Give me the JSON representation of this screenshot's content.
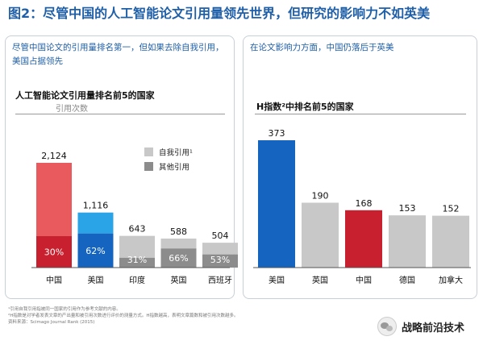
{
  "figure": {
    "label": "图2：",
    "title": "尽管中国的人工智能论文引用量领先世界，但研究的影响力不如英美"
  },
  "left_panel": {
    "subtitle": "尽管中国论文的引用量排名第一，但如果去除自我引用，美国占据领先",
    "chart_title": "人工智能论文引用量排名前5的国家",
    "unit": "引用次数"
  },
  "right_panel": {
    "subtitle": "在论文影响力方面，中国仍落后于英美",
    "chart_title": "H指数²中排名前5的国家"
  },
  "chart_data": [
    {
      "type": "bar",
      "title": "人工智能论文引用量排名前5的国家",
      "ylabel": "引用次数",
      "categories": [
        "中国",
        "美国",
        "印度",
        "英国",
        "西班牙"
      ],
      "totals": [
        2124,
        1116,
        643,
        588,
        504
      ],
      "total_labels": [
        "2,124",
        "1,116",
        "643",
        "588",
        "504"
      ],
      "series": [
        {
          "name": "其他引用",
          "values_pct": [
            30,
            62,
            31,
            66,
            53
          ]
        },
        {
          "name": "自我引用¹",
          "values_pct": [
            70,
            38,
            69,
            34,
            47
          ]
        }
      ],
      "pct_labels": [
        "30%",
        "62%",
        "31%",
        "66%",
        "53%"
      ],
      "legend": [
        "自我引用¹",
        "其他引用"
      ],
      "legend_position": "right",
      "top_colors": [
        "#e85a5e",
        "#2aa4e6",
        "#c8c8c8",
        "#c8c8c8",
        "#c8c8c8"
      ],
      "bottom_colors": [
        "#c8202e",
        "#1565c0",
        "#8c8c8c",
        "#8c8c8c",
        "#8c8c8c"
      ],
      "legend_colors": [
        "#c8c8c8",
        "#8c8c8c"
      ],
      "grid": false
    },
    {
      "type": "bar",
      "title": "H指数²中排名前5的国家",
      "categories": [
        "美国",
        "英国",
        "中国",
        "德国",
        "加拿大"
      ],
      "values": [
        373,
        190,
        168,
        153,
        152
      ],
      "value_labels": [
        "373",
        "190",
        "168",
        "153",
        "152"
      ],
      "colors": [
        "#1565c0",
        "#c8c8c8",
        "#c8202e",
        "#c8c8c8",
        "#c8c8c8"
      ],
      "grid": false
    }
  ],
  "footnotes": [
    "¹引用自我引用指被同一国家的引用作为参考文献的内容。",
    "²H指数是对学者发表文章的产出量和被引用次数进行评价的测量方式。H指数越高，表明文章篇数和被引用次数越多。",
    "资料来源：Scimago Journal Rank (2015)"
  ],
  "watermark": "战略前沿技术"
}
